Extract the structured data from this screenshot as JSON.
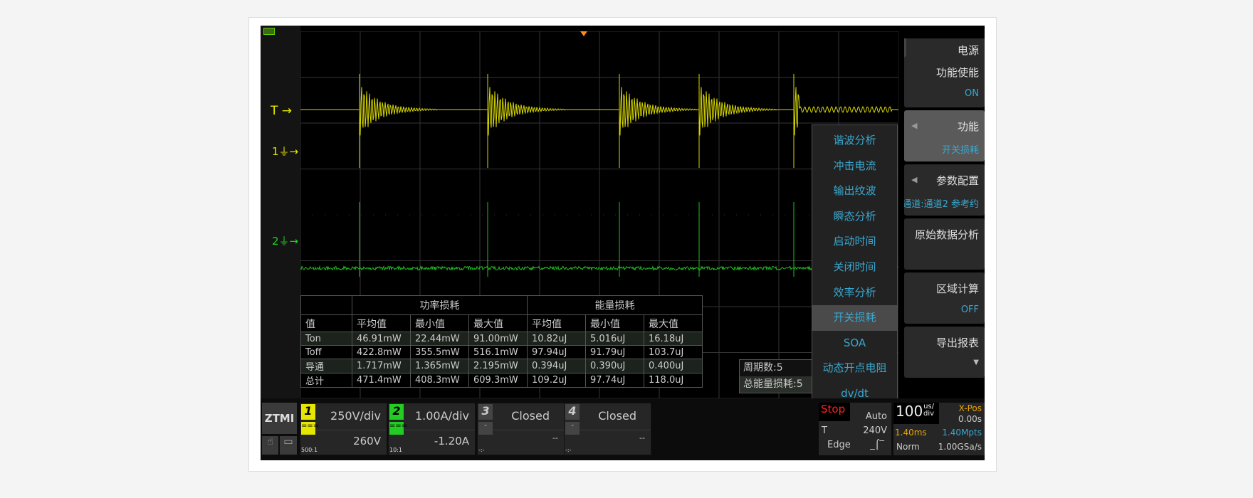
{
  "scope": {
    "marker_trigger": "T",
    "marker_ch1": "1",
    "marker_ch2": "2",
    "colors": {
      "ch1": "#e6e600",
      "ch2": "#22cc22",
      "accent": "#39a8d0",
      "trigger_pos": "#ff8c1a"
    }
  },
  "right_menu": {
    "title": "电源",
    "items": [
      {
        "label": "功能使能",
        "value": "ON"
      },
      {
        "label": "功能",
        "value": "开关损耗"
      },
      {
        "label": "参数配置",
        "value": "通道:通道2  参考约"
      },
      {
        "label": "原始数据分析",
        "value": ""
      },
      {
        "label": "区域计算",
        "value": "OFF"
      },
      {
        "label": "导出报表",
        "value": ""
      }
    ]
  },
  "popup": {
    "items": [
      "谐波分析",
      "冲击电流",
      "输出纹波",
      "瞬态分析",
      "启动时间",
      "关闭时间",
      "效率分析",
      "开关损耗",
      "SOA",
      "动态开点电阻",
      "dv/dt"
    ],
    "selected": "开关损耗"
  },
  "table": {
    "group_headers": [
      "功率损耗",
      "能量损耗"
    ],
    "columns": [
      "值",
      "平均值",
      "最小值",
      "最大值",
      "平均值",
      "最小值",
      "最大值"
    ],
    "rows": [
      [
        "Ton",
        "46.91mW",
        "22.44mW",
        "91.00mW",
        "10.82uJ",
        "5.016uJ",
        "16.18uJ"
      ],
      [
        "Toff",
        "422.8mW",
        "355.5mW",
        "516.1mW",
        "97.94uJ",
        "91.79uJ",
        "103.7uJ"
      ],
      [
        "导通",
        "1.717mW",
        "1.365mW",
        "2.195mW",
        "0.394uJ",
        "0.390uJ",
        "0.400uJ"
      ],
      [
        "总计",
        "471.4mW",
        "408.3mW",
        "609.3mW",
        "109.2uJ",
        "97.74uJ",
        "118.0uJ"
      ]
    ]
  },
  "info": {
    "cycles": "周期数:5",
    "total_energy": "总能量损耗:5"
  },
  "bottom": {
    "logo": "ZTMI",
    "channels": [
      {
        "num": "1",
        "scale": "250V/div",
        "offset": "260V",
        "ratio": "500:1",
        "coupling": "==="
      },
      {
        "num": "2",
        "scale": "1.00A/div",
        "offset": "-1.20A",
        "ratio": "10:1",
        "coupling": "==="
      },
      {
        "num": "3",
        "scale": "Closed",
        "offset": "--",
        "ratio": "-:-",
        "coupling": "-"
      },
      {
        "num": "4",
        "scale": "Closed",
        "offset": "--",
        "ratio": "-:-",
        "coupling": "-"
      }
    ],
    "trigger": {
      "state": "Stop",
      "mode": "Auto",
      "source": "T",
      "level": "240V",
      "type": "Edge"
    },
    "time": {
      "scale": "100",
      "unit_top": "us/",
      "unit_bottom": "div",
      "xpos_label": "X-Pos",
      "xpos": "0.00s",
      "length": "1.40ms",
      "points": "1.40Mpts",
      "acq": "Norm",
      "rate": "1.00GSa/s"
    }
  }
}
